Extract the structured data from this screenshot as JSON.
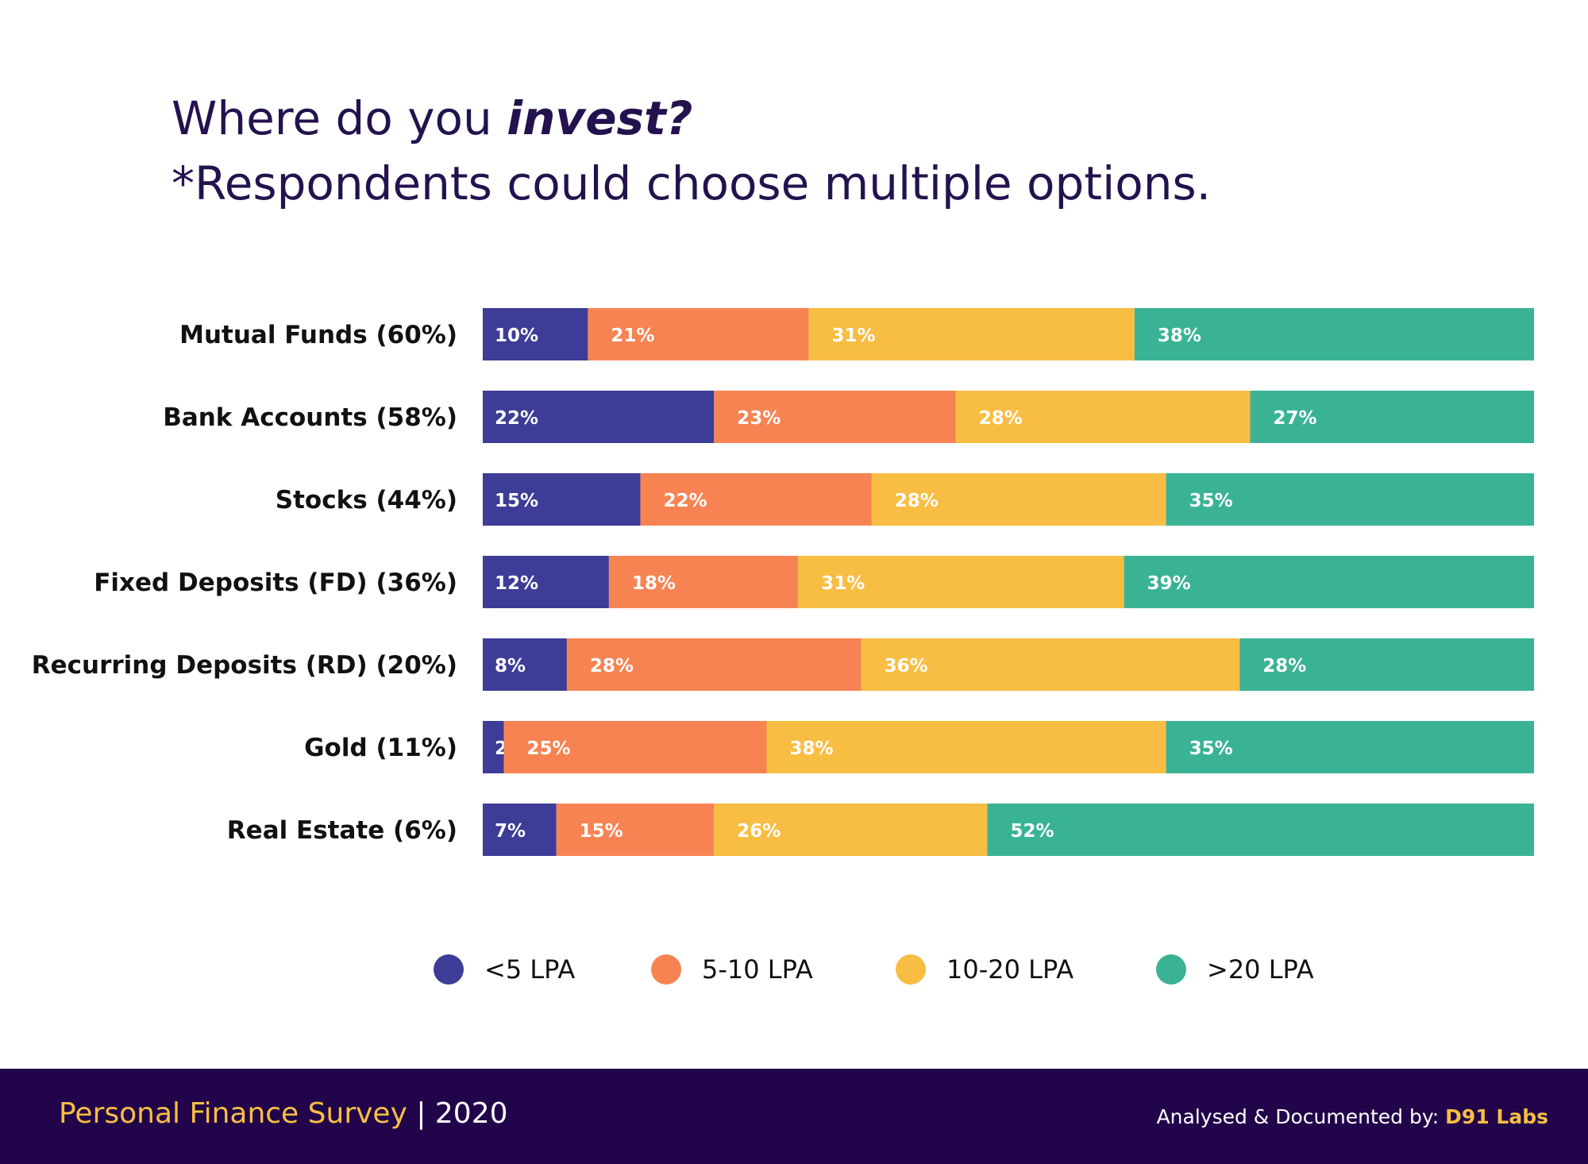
{
  "title": {
    "line1_prefix": "Where do you ",
    "line1_emphasis": "invest?",
    "line2": "*Respondents could choose multiple options."
  },
  "colors": {
    "title": "#24124e",
    "footer_bg": "#21044a",
    "footer_accent": "#f8bf43"
  },
  "chart_data": {
    "type": "bar",
    "orientation": "horizontal",
    "stacked": true,
    "normalized_percent": true,
    "categories": [
      "Mutual Funds (60%)",
      "Bank Accounts (58%)",
      "Stocks (44%)",
      "Fixed Deposits (FD) (36%)",
      "Recurring Deposits (RD) (20%)",
      "Gold (11%)",
      "Real Estate (6%)"
    ],
    "series": [
      {
        "name": "<5 LPA",
        "color": "#3d3c97",
        "values": [
          10,
          22,
          15,
          12,
          8,
          2,
          7
        ]
      },
      {
        "name": "5-10 LPA",
        "color": "#f78353",
        "values": [
          21,
          23,
          22,
          18,
          28,
          25,
          15
        ]
      },
      {
        "name": "10-20 LPA",
        "color": "#f8bd43",
        "values": [
          31,
          28,
          28,
          31,
          36,
          38,
          26
        ]
      },
      {
        "name": ">20 LPA",
        "color": "#3ab395",
        "values": [
          38,
          27,
          35,
          39,
          28,
          35,
          52
        ]
      }
    ],
    "data_label_suffix": "%",
    "grid": false,
    "legend_position": "bottom"
  },
  "footer": {
    "survey_name": "Personal Finance Survey",
    "separator": " | ",
    "year": "2020",
    "credit_prefix": "Analysed & Documented by: ",
    "credit_brand": "D91 Labs"
  }
}
